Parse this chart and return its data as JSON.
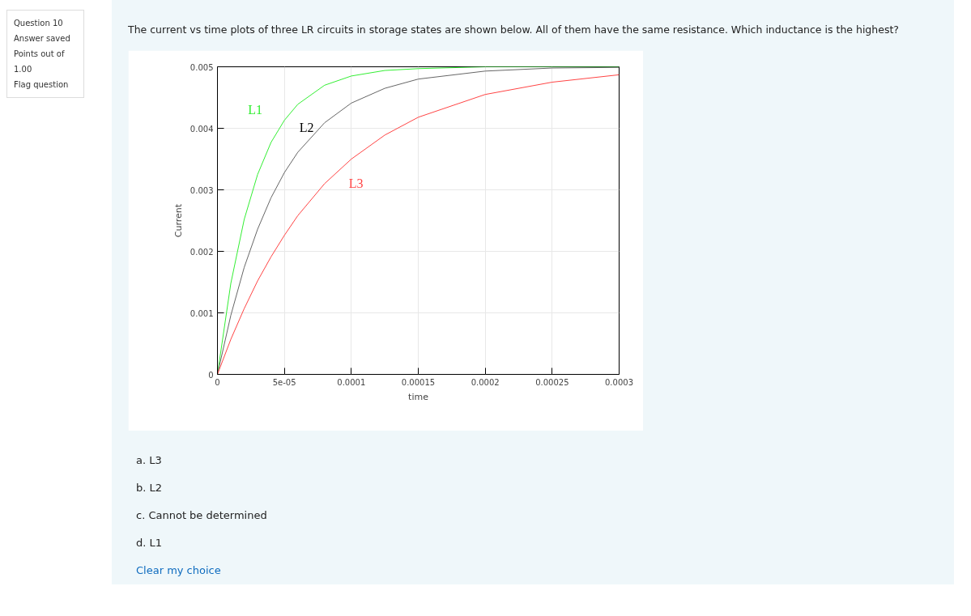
{
  "chart_data": {
    "type": "line",
    "title": "The current vs time plots of three LR circuits in storage states are shown below. All of them have the same resistance. Which inductance is the highest?",
    "xlabel": "time",
    "ylabel": "Current",
    "x": [
      0,
      1e-05,
      2e-05,
      3e-05,
      4e-05,
      5e-05,
      6e-05,
      8e-05,
      0.0001,
      0.000125,
      0.00015,
      0.0002,
      0.00025,
      0.0003
    ],
    "series": [
      {
        "name": "L1",
        "color": "#33ee33",
        "values": [
          0,
          0.00148,
          0.00252,
          0.00325,
          0.00377,
          0.00413,
          0.00439,
          0.0047,
          0.00485,
          0.00494,
          0.00497,
          0.005,
          0.005,
          0.005
        ]
      },
      {
        "name": "L2",
        "color": "#666666",
        "values": [
          0,
          0.00096,
          0.00174,
          0.00236,
          0.00287,
          0.00328,
          0.00361,
          0.00409,
          0.00441,
          0.00465,
          0.0048,
          0.00493,
          0.00498,
          0.00499
        ]
      },
      {
        "name": "L3",
        "color": "#ff4444",
        "values": [
          0,
          0.00057,
          0.00107,
          0.00152,
          0.00191,
          0.00226,
          0.00258,
          0.0031,
          0.0035,
          0.00389,
          0.00418,
          0.00455,
          0.00475,
          0.00487
        ]
      }
    ],
    "xlim": [
      0,
      0.0003
    ],
    "ylim": [
      0,
      0.005
    ],
    "xticks": [
      0,
      {
        "value": 5e-05,
        "label": "5e-05"
      },
      0.0001,
      0.00015,
      0.0002,
      0.00025,
      0.0003
    ],
    "yticks": [
      0,
      0.001,
      0.002,
      0.003,
      0.004,
      0.005
    ],
    "grid": true,
    "line_style": "solid",
    "annotations": [
      "Question 10",
      "Answer saved",
      "Points out of 1.00",
      "Flag question",
      "a. L3",
      "b. L2",
      "c. Cannot be determined",
      "d. L1",
      "Clear my choice"
    ]
  }
}
